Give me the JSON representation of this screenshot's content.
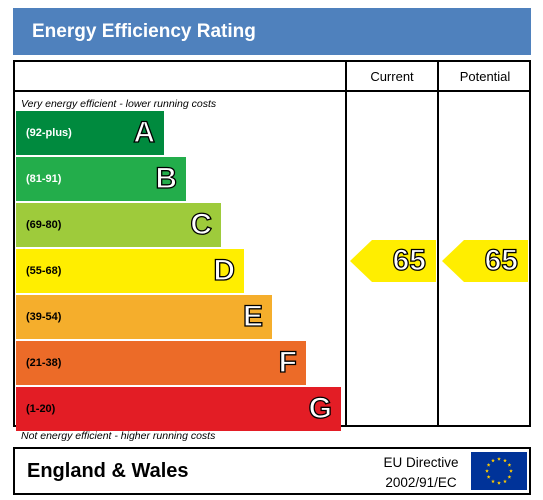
{
  "header": {
    "title": "Energy Efficiency Rating"
  },
  "columns": {
    "current": "Current",
    "potential": "Potential"
  },
  "scale_notes": {
    "top": "Very energy efficient - lower running costs",
    "bottom": "Not energy efficient - higher running costs"
  },
  "bands": [
    {
      "range": "(92-plus)",
      "letter": "A",
      "color": "#008a3e",
      "range_text_color": "light"
    },
    {
      "range": "(81-91)",
      "letter": "B",
      "color": "#23ad4b",
      "range_text_color": "light"
    },
    {
      "range": "(69-80)",
      "letter": "C",
      "color": "#9ecb3b",
      "range_text_color": "dark"
    },
    {
      "range": "(55-68)",
      "letter": "D",
      "color": "#ffee00",
      "range_text_color": "dark"
    },
    {
      "range": "(39-54)",
      "letter": "E",
      "color": "#f5ae2c",
      "range_text_color": "dark"
    },
    {
      "range": "(21-38)",
      "letter": "F",
      "color": "#ec6b28",
      "range_text_color": "dark"
    },
    {
      "range": "(1-20)",
      "letter": "G",
      "color": "#e31d25",
      "range_text_color": "dark"
    }
  ],
  "ratings": {
    "current": {
      "value": "65",
      "band": "D",
      "color": "#ffee00"
    },
    "potential": {
      "value": "65",
      "band": "D",
      "color": "#ffee00"
    }
  },
  "footer": {
    "region": "England & Wales",
    "directive_line1": "EU Directive",
    "directive_line2": "2002/91/EC",
    "flag": "eu-flag-icon",
    "flag_color": "#003399",
    "star_color": "#ffcc00"
  }
}
